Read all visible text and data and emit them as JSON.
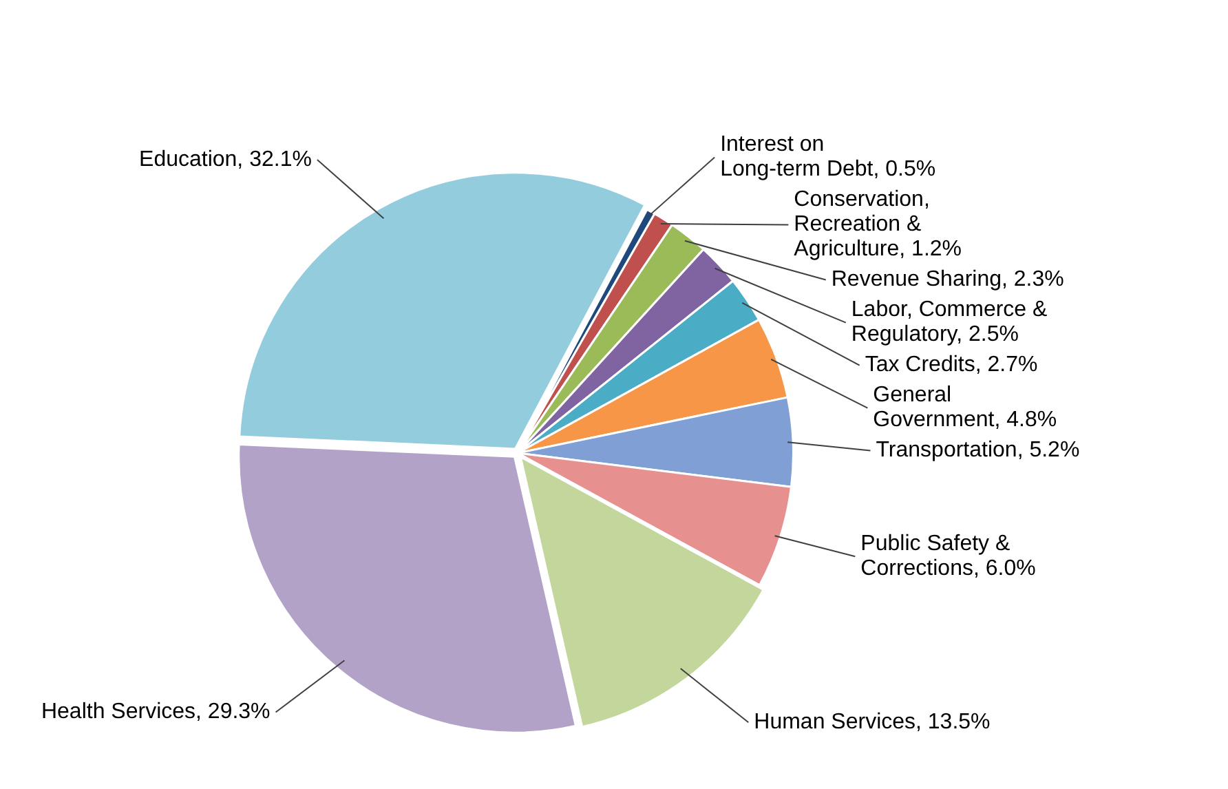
{
  "chart_data": {
    "type": "pie",
    "categories": [
      "Interest on Long-term Debt",
      "Conservation, Recreation & Agriculture",
      "Revenue Sharing",
      "Labor, Commerce & Regulatory",
      "Tax Credits",
      "General Government",
      "Transportation",
      "Public Safety & Corrections",
      "Human Services",
      "Health Services",
      "Education"
    ],
    "values": [
      0.5,
      1.2,
      2.3,
      2.5,
      2.7,
      4.8,
      5.2,
      6.0,
      13.5,
      29.3,
      32.1
    ],
    "colors": [
      "#1f497d",
      "#c0504d",
      "#9bbb59",
      "#8064a2",
      "#4bacc6",
      "#f79646",
      "#7f9fd5",
      "#e6908f",
      "#c3d69b",
      "#b3a2c7",
      "#93cddd"
    ],
    "value_labels": [
      "0.5%",
      "1.2%",
      "2.3%",
      "2.5%",
      "2.7%",
      "4.8%",
      "5.2%",
      "6.0%",
      "13.5%",
      "29.3%",
      "32.1%"
    ],
    "legend": false
  }
}
